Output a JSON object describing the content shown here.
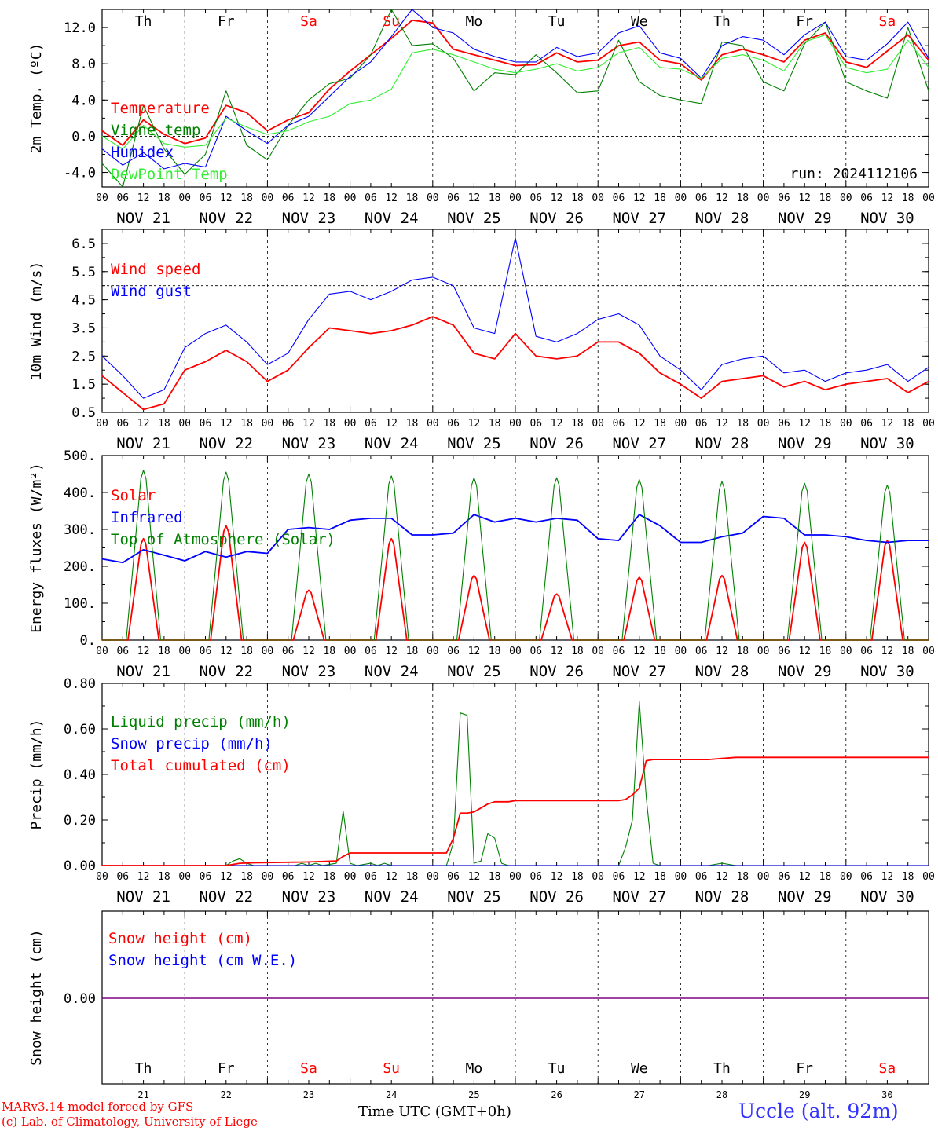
{
  "days": {
    "weekdays": [
      "Th",
      "Fr",
      "Sa",
      "Su",
      "Mo",
      "Tu",
      "We",
      "Th",
      "Fr",
      "Sa"
    ],
    "weekend_flags": [
      false,
      false,
      true,
      true,
      false,
      false,
      false,
      false,
      false,
      true
    ],
    "dates": [
      "NOV 21",
      "NOV 22",
      "NOV 23",
      "NOV 24",
      "NOV 25",
      "NOV 26",
      "NOV 27",
      "NOV 28",
      "NOV 29",
      "NOV 30"
    ],
    "day_numbers": [
      "21",
      "22",
      "23",
      "24",
      "25",
      "26",
      "27",
      "28",
      "29",
      "30"
    ],
    "hour_ticks": [
      "00",
      "06",
      "12",
      "18"
    ],
    "final_hour": "00"
  },
  "colors": {
    "red": "#ff0000",
    "blue": "#0000ff",
    "green": "#008000",
    "lightgreen": "#33ee33",
    "weekend": "#ff0000",
    "snow": "#800080"
  },
  "footer": {
    "model": "MARv3.14 model forced by GFS",
    "credit": "(c) Lab. of Climatology, University of Liege",
    "xlabel": "Time UTC (GMT+0h)",
    "station": "Uccle (alt. 92m)"
  },
  "chart_data": [
    {
      "type": "line",
      "ylabel": "2m Temp. (ºC)",
      "ylim": [
        -5.6,
        14
      ],
      "yticks": [
        "12.0",
        "8.0",
        "4.0",
        "0.0",
        "-4.0"
      ],
      "ytick_values": [
        12,
        8,
        4,
        0,
        -4
      ],
      "ref_line": 0,
      "run_label": "run: 2024112106",
      "x_unit": "hours since NOV 21 00 UTC",
      "series": [
        {
          "name": "Temperature",
          "color": "red",
          "x": [
            0,
            6,
            12,
            18,
            24,
            30,
            36,
            42,
            48,
            54,
            60,
            66,
            72,
            78,
            84,
            90,
            96,
            102,
            108,
            114,
            120,
            126,
            132,
            138,
            144,
            150,
            156,
            162,
            168,
            174,
            180,
            186,
            192,
            198,
            204,
            210,
            216,
            222,
            228,
            234,
            240
          ],
          "y": [
            0.6,
            -1.0,
            1.8,
            0.2,
            -0.8,
            -0.2,
            3.4,
            2.6,
            0.6,
            1.8,
            2.6,
            5.2,
            7.2,
            9.0,
            10.8,
            12.8,
            12.5,
            9.6,
            9.0,
            8.4,
            7.8,
            7.9,
            9.2,
            8.2,
            8.4,
            10.0,
            10.4,
            8.4,
            8.0,
            6.2,
            9.0,
            9.6,
            9.0,
            8.2,
            10.6,
            11.4,
            8.2,
            7.6,
            9.4,
            11.2,
            8.4
          ]
        },
        {
          "name": "Vigne temp",
          "color": "green",
          "x": [
            0,
            6,
            12,
            18,
            24,
            30,
            36,
            42,
            48,
            54,
            60,
            66,
            72,
            78,
            84,
            90,
            96,
            102,
            108,
            114,
            120,
            126,
            132,
            138,
            144,
            150,
            156,
            162,
            168,
            174,
            180,
            186,
            192,
            198,
            204,
            210,
            216,
            222,
            228,
            234,
            240
          ],
          "y": [
            -3.0,
            -5.6,
            3.4,
            -1.4,
            -4.2,
            -2.0,
            5.0,
            -1.0,
            -2.6,
            1.2,
            4.0,
            5.8,
            6.4,
            9.0,
            14.0,
            10.0,
            10.2,
            8.6,
            5.0,
            7.0,
            6.8,
            9.0,
            7.0,
            4.8,
            5.0,
            10.6,
            6.0,
            4.5,
            4.0,
            3.6,
            10.4,
            10.0,
            6.0,
            5.0,
            10.2,
            12.6,
            6.0,
            5.0,
            4.2,
            12.0,
            5.0
          ]
        },
        {
          "name": "Humidex",
          "color": "blue",
          "x": [
            0,
            6,
            12,
            18,
            24,
            30,
            36,
            42,
            48,
            54,
            60,
            66,
            72,
            78,
            84,
            90,
            96,
            102,
            108,
            114,
            120,
            126,
            132,
            138,
            144,
            150,
            156,
            162,
            168,
            174,
            180,
            186,
            192,
            198,
            204,
            210,
            216,
            222,
            228,
            234,
            240
          ],
          "y": [
            -1.4,
            -3.2,
            -1.8,
            -3.6,
            -3.0,
            -3.4,
            2.2,
            0.6,
            -0.8,
            1.2,
            2.2,
            4.4,
            6.6,
            8.2,
            11.0,
            14.0,
            12.0,
            11.4,
            9.6,
            8.8,
            8.2,
            8.2,
            9.8,
            8.8,
            9.2,
            11.4,
            12.2,
            9.2,
            8.6,
            6.4,
            10.0,
            11.0,
            10.6,
            9.0,
            11.2,
            12.6,
            8.8,
            8.4,
            10.2,
            12.6,
            8.6
          ]
        },
        {
          "name": "DewPoint Temp",
          "color": "lightgreen",
          "x": [
            0,
            6,
            12,
            18,
            24,
            30,
            36,
            42,
            48,
            54,
            60,
            66,
            72,
            78,
            84,
            90,
            96,
            102,
            108,
            114,
            120,
            126,
            132,
            138,
            144,
            150,
            156,
            162,
            168,
            174,
            180,
            186,
            192,
            198,
            204,
            210,
            216,
            222,
            228,
            234,
            240
          ],
          "y": [
            0.0,
            -1.4,
            1.2,
            -0.8,
            -1.2,
            -1.0,
            2.0,
            1.0,
            0.2,
            0.6,
            1.6,
            2.2,
            3.6,
            4.0,
            5.2,
            9.2,
            9.6,
            9.0,
            8.2,
            7.4,
            7.0,
            7.4,
            8.0,
            7.2,
            7.6,
            9.2,
            9.8,
            7.6,
            7.4,
            6.4,
            8.6,
            9.0,
            8.4,
            7.2,
            10.4,
            11.2,
            7.6,
            7.0,
            7.4,
            10.6,
            7.6
          ]
        }
      ]
    },
    {
      "type": "line",
      "ylabel": "10m Wind (m/s)",
      "ylim": [
        0.5,
        7.0
      ],
      "yticks": [
        "6.5",
        "5.5",
        "4.5",
        "3.5",
        "2.5",
        "1.5",
        "0.5"
      ],
      "ytick_values": [
        6.5,
        5.5,
        4.5,
        3.5,
        2.5,
        1.5,
        0.5
      ],
      "ref_line": 5,
      "x_unit": "hours since NOV 21 00 UTC",
      "series": [
        {
          "name": "Wind speed",
          "color": "red",
          "x": [
            0,
            6,
            12,
            18,
            24,
            30,
            36,
            42,
            48,
            54,
            60,
            66,
            72,
            78,
            84,
            90,
            96,
            102,
            108,
            114,
            120,
            126,
            132,
            138,
            144,
            150,
            156,
            162,
            168,
            174,
            180,
            186,
            192,
            198,
            204,
            210,
            216,
            222,
            228,
            234,
            240
          ],
          "y": [
            1.8,
            1.2,
            0.6,
            0.8,
            2.0,
            2.3,
            2.7,
            2.3,
            1.6,
            2.0,
            2.8,
            3.5,
            3.4,
            3.3,
            3.4,
            3.6,
            3.9,
            3.6,
            2.6,
            2.4,
            3.3,
            2.5,
            2.4,
            2.5,
            3.0,
            3.0,
            2.6,
            1.9,
            1.5,
            1.0,
            1.6,
            1.7,
            1.8,
            1.4,
            1.6,
            1.3,
            1.5,
            1.6,
            1.7,
            1.2,
            1.6
          ]
        },
        {
          "name": "Wind gust",
          "color": "blue",
          "x": [
            0,
            6,
            12,
            18,
            24,
            30,
            36,
            42,
            48,
            54,
            60,
            66,
            72,
            78,
            84,
            90,
            96,
            102,
            108,
            114,
            120,
            126,
            132,
            138,
            144,
            150,
            156,
            162,
            168,
            174,
            180,
            186,
            192,
            198,
            204,
            210,
            216,
            222,
            228,
            234,
            240
          ],
          "y": [
            2.5,
            1.8,
            1.0,
            1.3,
            2.8,
            3.3,
            3.6,
            3.0,
            2.2,
            2.6,
            3.8,
            4.7,
            4.8,
            4.5,
            4.8,
            5.2,
            5.3,
            5.0,
            3.5,
            3.3,
            6.7,
            3.2,
            3.0,
            3.3,
            3.8,
            4.0,
            3.6,
            2.5,
            2.0,
            1.3,
            2.2,
            2.4,
            2.5,
            1.9,
            2.0,
            1.6,
            1.9,
            2.0,
            2.2,
            1.6,
            2.1
          ]
        }
      ]
    },
    {
      "type": "line",
      "ylabel": "Energy fluxes (W/m²)",
      "ylim": [
        0,
        500
      ],
      "yticks": [
        "500.",
        "400.",
        "300.",
        "200.",
        "100.",
        "0."
      ],
      "ytick_values": [
        500,
        400,
        300,
        200,
        100,
        0
      ],
      "x_unit": "hours since NOV 21 00 UTC",
      "series": [
        {
          "name": "Solar",
          "color": "red",
          "peaks_x": [
            12,
            36,
            60,
            84,
            108,
            132,
            156,
            180,
            204,
            228
          ],
          "peaks_y": [
            275,
            310,
            135,
            275,
            175,
            125,
            170,
            175,
            265,
            270
          ],
          "half_width": 4.5
        },
        {
          "name": "Infrared",
          "color": "blue",
          "x": [
            0,
            6,
            12,
            18,
            24,
            30,
            36,
            42,
            48,
            54,
            60,
            66,
            72,
            78,
            84,
            90,
            96,
            102,
            108,
            114,
            120,
            126,
            132,
            138,
            144,
            150,
            156,
            162,
            168,
            174,
            180,
            186,
            192,
            198,
            204,
            210,
            216,
            222,
            228,
            234,
            240
          ],
          "y": [
            220,
            210,
            245,
            230,
            215,
            240,
            225,
            240,
            235,
            300,
            305,
            300,
            325,
            330,
            330,
            285,
            285,
            290,
            340,
            320,
            330,
            320,
            330,
            325,
            275,
            270,
            340,
            310,
            265,
            265,
            280,
            290,
            335,
            330,
            285,
            285,
            280,
            270,
            265,
            270,
            270
          ]
        },
        {
          "name": "Top of Atmosphere (Solar)",
          "color": "green",
          "peaks_x": [
            12,
            36,
            60,
            84,
            108,
            132,
            156,
            180,
            204,
            228
          ],
          "peaks_y": [
            460,
            455,
            450,
            445,
            440,
            440,
            435,
            430,
            425,
            420
          ],
          "half_width": 5
        }
      ]
    },
    {
      "type": "line",
      "ylabel": "Precip (mm/h)",
      "ylim": [
        0,
        0.8
      ],
      "yticks": [
        "0.80",
        "0.60",
        "0.40",
        "0.20",
        "0.00"
      ],
      "ytick_values": [
        0.8,
        0.6,
        0.4,
        0.2,
        0
      ],
      "x_unit": "hours since NOV 21 00 UTC",
      "series": [
        {
          "name": "Liquid precip (mm/h)",
          "color": "green",
          "x": [
            0,
            36,
            38,
            40,
            42,
            44,
            56,
            58,
            60,
            62,
            64,
            68,
            70,
            72,
            74,
            78,
            80,
            82,
            84,
            100,
            102,
            104,
            106,
            108,
            110,
            112,
            114,
            116,
            118,
            120,
            150,
            152,
            154,
            156,
            158,
            160,
            162,
            176,
            178,
            180,
            182,
            184,
            240
          ],
          "y": [
            0,
            0,
            0.02,
            0.03,
            0.01,
            0,
            0,
            0.01,
            0,
            0.01,
            0,
            0.01,
            0.24,
            0.01,
            0,
            0.01,
            0,
            0.01,
            0,
            0,
            0.1,
            0.67,
            0.66,
            0.01,
            0.02,
            0.14,
            0.12,
            0.01,
            0,
            0,
            0,
            0.08,
            0.2,
            0.72,
            0.3,
            0.01,
            0,
            0,
            0.005,
            0.01,
            0.005,
            0,
            0
          ]
        },
        {
          "name": "Snow precip (mm/h)",
          "color": "blue",
          "x": [
            0,
            240
          ],
          "y": [
            0,
            0
          ]
        },
        {
          "name": "Total cumulated (cm)",
          "color": "red",
          "x": [
            0,
            36,
            40,
            44,
            56,
            60,
            68,
            70,
            72,
            74,
            100,
            102,
            104,
            106,
            108,
            112,
            114,
            116,
            118,
            120,
            150,
            152,
            154,
            156,
            158,
            160,
            162,
            176,
            180,
            184,
            240
          ],
          "y": [
            0,
            0,
            0.01,
            0.012,
            0.015,
            0.016,
            0.02,
            0.04,
            0.055,
            0.055,
            0.055,
            0.12,
            0.23,
            0.23,
            0.235,
            0.27,
            0.28,
            0.28,
            0.28,
            0.285,
            0.285,
            0.29,
            0.31,
            0.34,
            0.46,
            0.465,
            0.465,
            0.465,
            0.47,
            0.475,
            0.475
          ]
        }
      ]
    },
    {
      "type": "line",
      "ylabel": "Snow height (cm)",
      "yticks": [
        "0.00"
      ],
      "ytick_values": [
        0
      ],
      "series": [
        {
          "name": "Snow height (cm)",
          "color": "red"
        },
        {
          "name": "Snow height (cm W.E.)",
          "color": "blue"
        }
      ]
    }
  ]
}
